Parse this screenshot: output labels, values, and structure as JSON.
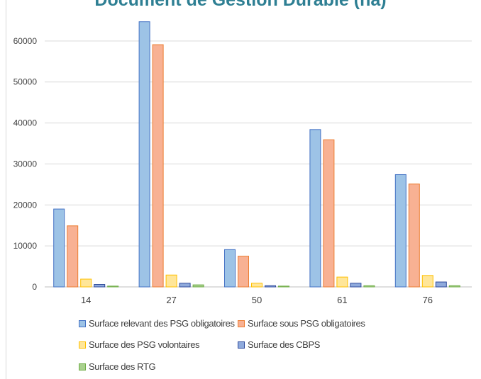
{
  "chart_data": {
    "type": "bar",
    "title": "Document de Gestion Durable (ha)",
    "xlabel": "",
    "ylabel": "",
    "categories": [
      "14",
      "27",
      "50",
      "61",
      "76"
    ],
    "ylim": [
      0,
      70000
    ],
    "yticks": [
      0,
      10000,
      20000,
      30000,
      40000,
      50000,
      60000
    ],
    "grid": true,
    "legend_position": "bottom",
    "series": [
      {
        "name": "Surface relevant des PSG obligatoires",
        "values": [
          19000,
          64700,
          9100,
          38400,
          27400
        ],
        "color": "#9dc3e6",
        "edge": "#4472c4"
      },
      {
        "name": "Surface sous PSG obligatoires",
        "values": [
          14900,
          59100,
          7500,
          35900,
          25100
        ],
        "color": "#f8b193",
        "edge": "#ed7d31"
      },
      {
        "name": "Surface des PSG volontaires",
        "values": [
          1900,
          2900,
          900,
          2400,
          2800
        ],
        "color": "#ffe699",
        "edge": "#ffc000"
      },
      {
        "name": "Surface des CBPS",
        "values": [
          600,
          900,
          300,
          900,
          1200
        ],
        "color": "#8faadc",
        "edge": "#2f4b9c"
      },
      {
        "name": "Surface des RTG",
        "values": [
          200,
          500,
          200,
          300,
          300
        ],
        "color": "#a9d18e",
        "edge": "#70ad47"
      }
    ]
  }
}
